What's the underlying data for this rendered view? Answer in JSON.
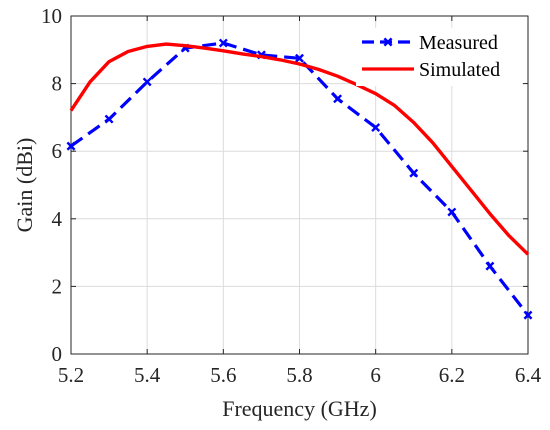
{
  "chart_data": {
    "type": "line",
    "xlabel": "Frequency (GHz)",
    "ylabel": "Gain (dBi)",
    "xlim": [
      5.2,
      6.4
    ],
    "ylim": [
      0,
      10
    ],
    "xticks": [
      5.2,
      5.4,
      5.6,
      5.8,
      6,
      6.2,
      6.4
    ],
    "xtick_labels": [
      "5.2",
      "5.4",
      "5.6",
      "5.8",
      "6",
      "6.2",
      "6.4"
    ],
    "yticks": [
      0,
      2,
      4,
      6,
      8,
      10
    ],
    "ytick_labels": [
      "0",
      "2",
      "4",
      "6",
      "8",
      "10"
    ],
    "grid": true,
    "legend_position": "top-right",
    "series": [
      {
        "name": "Measured",
        "color": "#0000FF",
        "style": "dashed",
        "marker": "x",
        "x": [
          5.2,
          5.3,
          5.4,
          5.5,
          5.6,
          5.7,
          5.8,
          5.9,
          6.0,
          6.1,
          6.2,
          6.3,
          6.4
        ],
        "y": [
          6.15,
          6.95,
          8.05,
          9.05,
          9.2,
          8.85,
          8.75,
          7.55,
          6.7,
          5.35,
          4.2,
          2.6,
          1.15
        ]
      },
      {
        "name": "Simulated",
        "color": "#FF0000",
        "style": "solid",
        "marker": "none",
        "x": [
          5.2,
          5.25,
          5.3,
          5.35,
          5.4,
          5.45,
          5.5,
          5.55,
          5.6,
          5.65,
          5.7,
          5.75,
          5.8,
          5.85,
          5.9,
          5.95,
          6.0,
          6.05,
          6.1,
          6.15,
          6.2,
          6.25,
          6.3,
          6.35,
          6.4
        ],
        "y": [
          7.2,
          8.05,
          8.65,
          8.95,
          9.1,
          9.17,
          9.12,
          9.05,
          8.97,
          8.88,
          8.8,
          8.7,
          8.58,
          8.42,
          8.22,
          7.97,
          7.7,
          7.35,
          6.85,
          6.25,
          5.55,
          4.85,
          4.15,
          3.5,
          2.95
        ]
      }
    ]
  }
}
